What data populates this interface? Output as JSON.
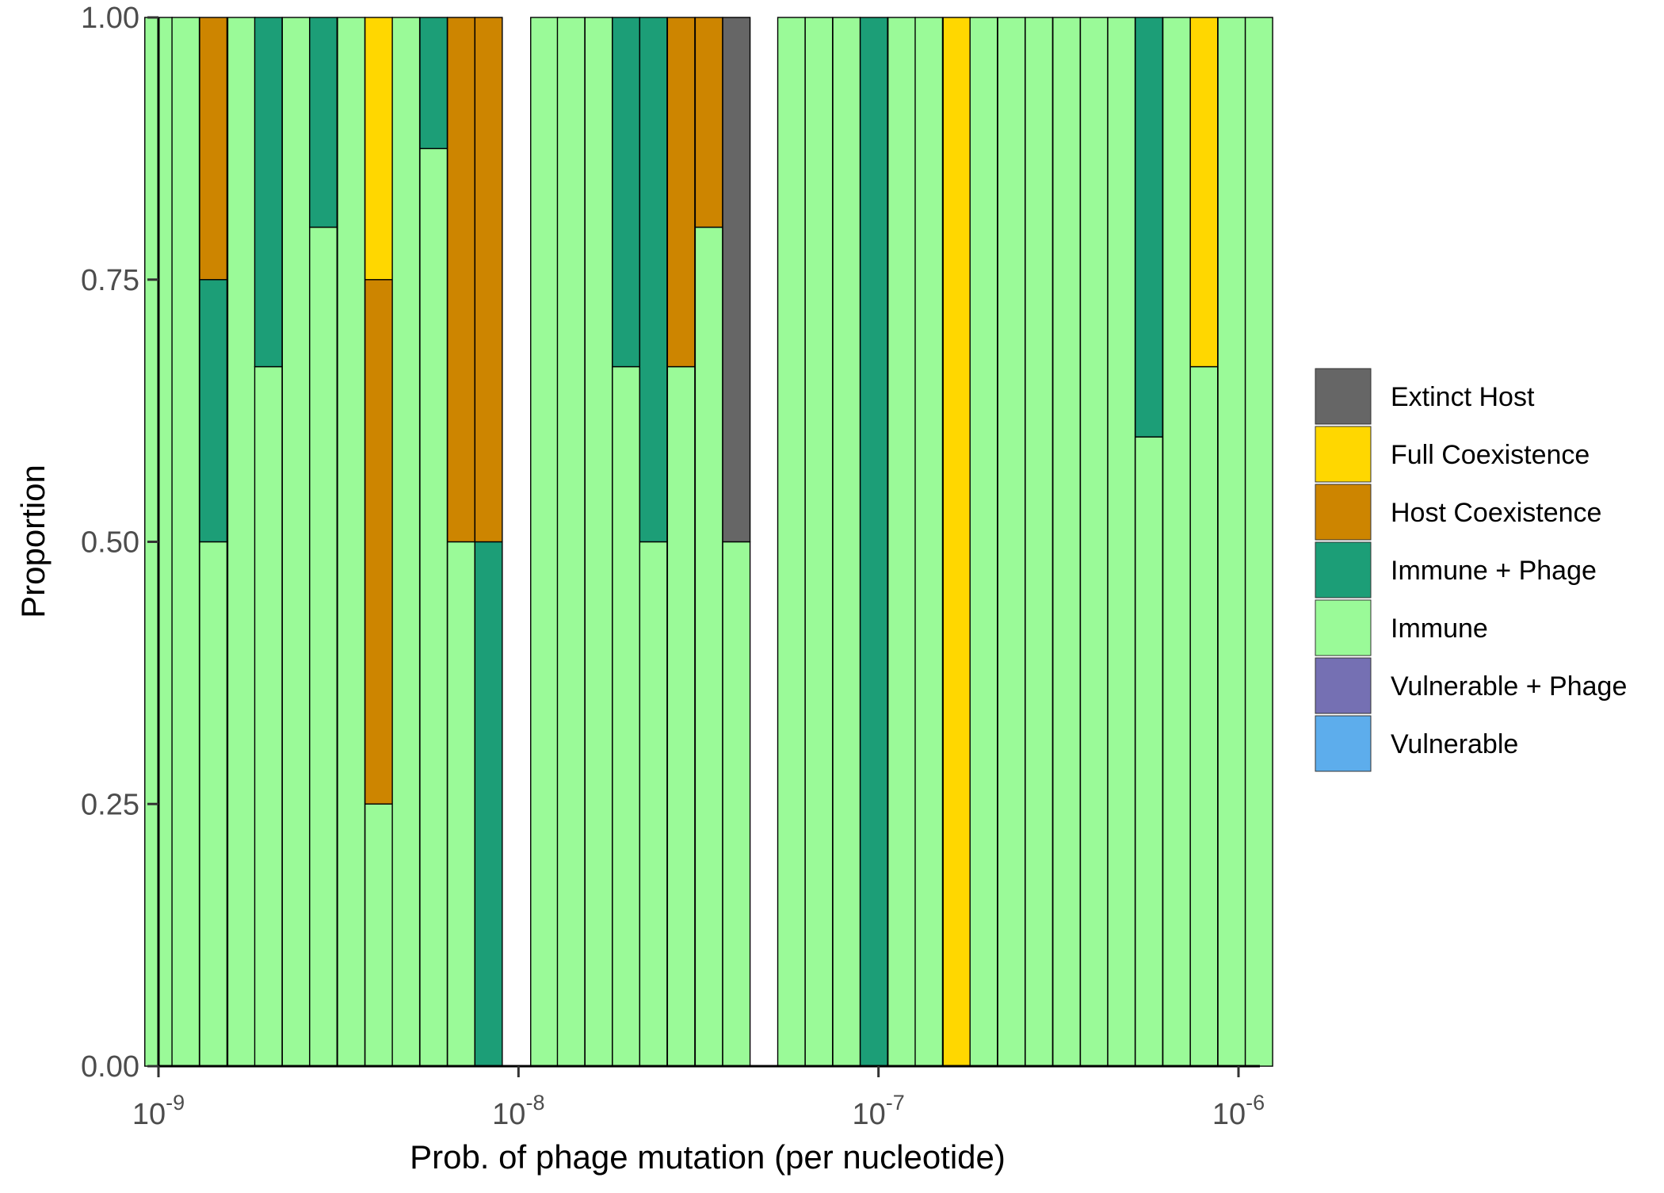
{
  "chart_data": {
    "type": "bar",
    "stacked": true,
    "xlabel": "Prob. of phage mutation (per nucleotide)",
    "ylabel": "Proportion",
    "ylim": [
      0,
      1
    ],
    "x_scale": "log10",
    "xlim": [
      1e-09,
      1e-06
    ],
    "y_ticks": [
      "0.00",
      "0.25",
      "0.50",
      "0.75",
      "1.00"
    ],
    "x_ticks": [
      {
        "base": "10",
        "exp": "-9"
      },
      {
        "base": "10",
        "exp": "-8"
      },
      {
        "base": "10",
        "exp": "-7"
      },
      {
        "base": "10",
        "exp": "-6"
      }
    ],
    "grid": false,
    "legend_position": "right",
    "stack_order_bottom_to_top": [
      "Immune",
      "Immune + Phage",
      "Host Coexistence",
      "Full Coexistence",
      "Extinct Host"
    ],
    "legend": [
      {
        "label": "Extinct Host",
        "color": "#666666"
      },
      {
        "label": "Full Coexistence",
        "color": "#FFD700"
      },
      {
        "label": "Host Coexistence",
        "color": "#CD8500"
      },
      {
        "label": "Immune + Phage",
        "color": "#1C9E77"
      },
      {
        "label": "Immune",
        "color": "#9AFA98"
      },
      {
        "label": "Vulnerable + Phage",
        "color": "#7570B3"
      },
      {
        "label": "Vulnerable",
        "color": "#5DADEC"
      }
    ],
    "bars": [
      {
        "x": 1e-09,
        "segments": {
          "Immune": 1
        }
      },
      {
        "x": 1.19e-09,
        "segments": {
          "Immune": 1
        }
      },
      {
        "x": 1.42e-09,
        "segments": {
          "Immune": 0.5,
          "Immune + Phage": 0.25,
          "Host Coexistence": 0.25
        }
      },
      {
        "x": 1.7e-09,
        "segments": {
          "Immune": 1
        }
      },
      {
        "x": 2.02e-09,
        "segments": {
          "Immune": 0.667,
          "Immune + Phage": 0.333
        }
      },
      {
        "x": 2.41e-09,
        "segments": {
          "Immune": 1
        }
      },
      {
        "x": 2.87e-09,
        "segments": {
          "Immune": 0.8,
          "Immune + Phage": 0.2
        }
      },
      {
        "x": 3.43e-09,
        "segments": {
          "Immune": 1
        }
      },
      {
        "x": 4.09e-09,
        "segments": {
          "Immune": 0.25,
          "Host Coexistence": 0.5,
          "Full Coexistence": 0.25
        }
      },
      {
        "x": 4.87e-09,
        "segments": {
          "Immune": 1
        }
      },
      {
        "x": 5.81e-09,
        "segments": {
          "Immune": 0.875,
          "Immune + Phage": 0.125
        }
      },
      {
        "x": 6.93e-09,
        "segments": {
          "Host Coexistence": 0.5,
          "Immune": 0.5
        }
      },
      {
        "x": 8.26e-09,
        "segments": {
          "Immune + Phage": 0.5,
          "Host Coexistence": 0.5
        }
      },
      {
        "x": 1.18e-08,
        "segments": {
          "Immune": 1
        }
      },
      {
        "x": 1.4e-08,
        "segments": {
          "Immune": 1
        }
      },
      {
        "x": 1.67e-08,
        "segments": {
          "Immune": 1
        }
      },
      {
        "x": 1.99e-08,
        "segments": {
          "Immune": 0.667,
          "Immune + Phage": 0.333
        }
      },
      {
        "x": 2.37e-08,
        "segments": {
          "Immune": 0.5,
          "Immune + Phage": 0.5
        }
      },
      {
        "x": 2.83e-08,
        "segments": {
          "Immune": 0.667,
          "Host Coexistence": 0.333
        }
      },
      {
        "x": 3.38e-08,
        "segments": {
          "Immune": 0.8,
          "Host Coexistence": 0.2
        }
      },
      {
        "x": 4.03e-08,
        "segments": {
          "Immune": 0.5,
          "Extinct Host": 0.5
        }
      },
      {
        "x": 5.73e-08,
        "segments": {
          "Immune": 1
        }
      },
      {
        "x": 6.83e-08,
        "segments": {
          "Immune": 1
        }
      },
      {
        "x": 8.15e-08,
        "segments": {
          "Immune": 1
        }
      },
      {
        "x": 9.71e-08,
        "segments": {
          "Immune + Phage": 1
        }
      },
      {
        "x": 1.16e-07,
        "segments": {
          "Immune": 1
        }
      },
      {
        "x": 1.38e-07,
        "segments": {
          "Immune": 1
        }
      },
      {
        "x": 1.65e-07,
        "segments": {
          "Full Coexistence": 1
        }
      },
      {
        "x": 1.96e-07,
        "segments": {
          "Immune": 1
        }
      },
      {
        "x": 2.34e-07,
        "segments": {
          "Immune": 1
        }
      },
      {
        "x": 2.79e-07,
        "segments": {
          "Immune": 1
        }
      },
      {
        "x": 3.33e-07,
        "segments": {
          "Immune": 1
        }
      },
      {
        "x": 3.97e-07,
        "segments": {
          "Immune": 1
        }
      },
      {
        "x": 4.73e-07,
        "segments": {
          "Immune": 1
        }
      },
      {
        "x": 5.64e-07,
        "segments": {
          "Immune": 0.6,
          "Immune + Phage": 0.4
        }
      },
      {
        "x": 6.73e-07,
        "segments": {
          "Immune": 1
        }
      },
      {
        "x": 8.02e-07,
        "segments": {
          "Immune": 0.667,
          "Full Coexistence": 0.333
        }
      },
      {
        "x": 9.57e-07,
        "segments": {
          "Immune": 1
        }
      },
      {
        "x": 1.14e-06,
        "segments": {
          "Immune": 1
        }
      }
    ]
  }
}
